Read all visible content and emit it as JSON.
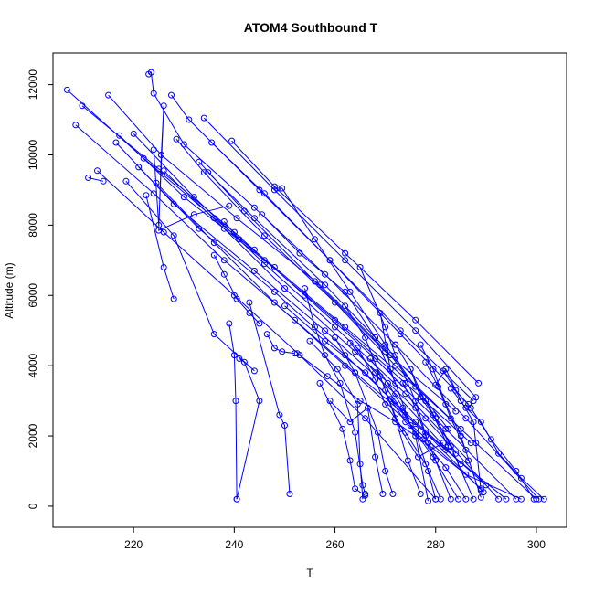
{
  "chart_data": {
    "type": "line",
    "title": "ATOM4 Southbound T",
    "xlabel": "T",
    "ylabel": "Altitude (m)",
    "xlim": [
      204,
      306
    ],
    "ylim": [
      -600,
      12900
    ],
    "xticks": [
      220,
      240,
      260,
      280,
      300
    ],
    "yticks": [
      0,
      2000,
      4000,
      6000,
      8000,
      10000,
      12000
    ],
    "grid": false,
    "legend": "none",
    "colors": {
      "series": "#0000ff",
      "axes": "#000000",
      "background": "#ffffff"
    },
    "marker": "open-circle",
    "series": [
      {
        "x": [
          206.8,
          222.0,
          236.0,
          248.0,
          262.0,
          276.0,
          288.0,
          300.0
        ],
        "y": [
          11850,
          9900,
          8200,
          6800,
          5100,
          3400,
          1800,
          200
        ]
      },
      {
        "x": [
          208.5,
          224.0,
          238.0,
          252.0,
          264.0,
          278.0,
          289.5
        ],
        "y": [
          10850,
          8900,
          7000,
          5300,
          3800,
          2100,
          400
        ]
      },
      {
        "x": [
          209.8,
          225.0,
          240.0,
          254.0,
          268.0,
          282.0,
          296.0
        ],
        "y": [
          11400,
          9600,
          7800,
          6000,
          4200,
          2200,
          200
        ]
      },
      {
        "x": [
          211.0,
          214.0
        ],
        "y": [
          9350,
          9250
        ]
      },
      {
        "x": [
          212.8,
          226.0,
          240.0,
          253.0,
          266.0,
          280.0
        ],
        "y": [
          9550,
          7800,
          6000,
          4300,
          2500,
          200
        ]
      },
      {
        "x": [
          215.0,
          225.5,
          240.5,
          257.0,
          271.0,
          282.5
        ],
        "y": [
          11700,
          10000,
          8200,
          6300,
          4300,
          2200
        ]
      },
      {
        "x": [
          216.5,
          228.0,
          244.0,
          258.0,
          272.0,
          285.0
        ],
        "y": [
          10350,
          8600,
          6700,
          5000,
          3200,
          1200
        ]
      },
      {
        "x": [
          217.2,
          230.0,
          246.0,
          260.0,
          274.0,
          287.0
        ],
        "y": [
          10550,
          8800,
          7000,
          5300,
          3500,
          1800
        ]
      },
      {
        "x": [
          218.5,
          228.0,
          236.0,
          244.0
        ],
        "y": [
          9250,
          7700,
          4900,
          3850
        ]
      },
      {
        "x": [
          220.0,
          232.0,
          246.0,
          260.0,
          274.0,
          286.5
        ],
        "y": [
          10600,
          8800,
          6900,
          5100,
          3200,
          1300
        ]
      },
      {
        "x": [
          221.0,
          233.0,
          248.0,
          262.0,
          276.0,
          290.0
        ],
        "y": [
          9650,
          7900,
          6100,
          4300,
          2400,
          600
        ]
      },
      {
        "x": [
          222.5,
          226.0,
          228.0
        ],
        "y": [
          8850,
          6800,
          5900
        ]
      },
      {
        "x": [
          223.0,
          223.5,
          224.0,
          230.0,
          244.0,
          258.0,
          272.0,
          286.0,
          300.5
        ],
        "y": [
          12300,
          12350,
          11750,
          10300,
          8500,
          6600,
          4600,
          2500,
          200
        ]
      },
      {
        "x": [
          224.0,
          225.0,
          226.0,
          225.5,
          225.0,
          232.0,
          239.0
        ],
        "y": [
          10150,
          8000,
          11400,
          10000,
          7850,
          8300,
          8550
        ]
      },
      {
        "x": [
          224.5,
          236.0,
          248.0,
          262.0,
          276.0,
          289.0
        ],
        "y": [
          9200,
          7500,
          5800,
          4000,
          2200,
          500
        ]
      },
      {
        "x": [
          226.0,
          238.0,
          250.0,
          264.0,
          278.0,
          292.5
        ],
        "y": [
          9550,
          7900,
          6200,
          4400,
          2500,
          200
        ]
      },
      {
        "x": [
          227.5,
          231.0,
          245.0,
          259.0,
          273.0,
          286.5
        ],
        "y": [
          11700,
          11000,
          9000,
          7000,
          4900,
          2900
        ]
      },
      {
        "x": [
          228.5,
          234.0,
          246.0,
          260.0,
          272.0,
          285.0
        ],
        "y": [
          10450,
          9500,
          7700,
          5800,
          4000,
          2200
        ]
      },
      {
        "x": [
          233.0,
          242.0,
          256.0,
          270.0,
          284.0
        ],
        "y": [
          9800,
          8400,
          6400,
          4400,
          2700
        ]
      },
      {
        "x": [
          234.0,
          248.0,
          262.0,
          276.0,
          288.0
        ],
        "y": [
          11050,
          9000,
          7000,
          5000,
          3100
        ]
      },
      {
        "x": [
          234.8,
          244.0,
          258.0,
          270.0
        ],
        "y": [
          9500,
          8200,
          6300,
          4500
        ]
      },
      {
        "x": [
          235.5,
          246.0,
          259.0,
          273.0,
          287.5
        ],
        "y": [
          10350,
          8900,
          7000,
          5000,
          3000
        ]
      },
      {
        "x": [
          236.0,
          238.0,
          240.5,
          243.0,
          245.0
        ],
        "y": [
          7150,
          6600,
          5900,
          5500,
          5200
        ]
      },
      {
        "x": [
          238.0,
          241.0,
          244.0
        ],
        "y": [
          8100,
          7600,
          7300
        ]
      },
      {
        "x": [
          239.0,
          240.0,
          240.3,
          240.5
        ],
        "y": [
          5200,
          4300,
          3000,
          200
        ]
      },
      {
        "x": [
          239.5,
          248.0,
          262.0,
          276.0,
          288.5
        ],
        "y": [
          10400,
          9100,
          7200,
          5300,
          3500
        ]
      },
      {
        "x": [
          241.0,
          242.0,
          245.0,
          240.5
        ],
        "y": [
          4200,
          4100,
          3000,
          200
        ]
      },
      {
        "x": [
          243.0,
          249.0,
          250.0,
          251.0
        ],
        "y": [
          5800,
          2600,
          2300,
          350
        ]
      },
      {
        "x": [
          245.5,
          253.0,
          262.0,
          268.0,
          272.0
        ],
        "y": [
          8300,
          7200,
          6100,
          4800,
          3500
        ]
      },
      {
        "x": [
          246.5,
          248.0,
          249.5,
          252.0
        ],
        "y": [
          4900,
          4500,
          4400,
          4350
        ]
      },
      {
        "x": [
          248.5,
          249.5,
          256.0,
          263.0,
          270.0,
          278.0,
          284.0
        ],
        "y": [
          9050,
          9050,
          7600,
          6100,
          4600,
          3000,
          1500
        ]
      },
      {
        "x": [
          250.0,
          258.0,
          266.0,
          274.0,
          282.0,
          294.0
        ],
        "y": [
          5700,
          4700,
          3800,
          2600,
          1600,
          200
        ]
      },
      {
        "x": [
          252.5,
          258.5,
          265.0,
          272.0,
          279.0,
          286.0,
          297.0
        ],
        "y": [
          4350,
          3700,
          3000,
          2400,
          1700,
          900,
          200
        ]
      },
      {
        "x": [
          254.0,
          256.0,
          258.0,
          261.0,
          264.0,
          265.5,
          266.0
        ],
        "y": [
          6200,
          5100,
          4300,
          3500,
          2100,
          600,
          350
        ]
      },
      {
        "x": [
          255.0,
          260.5,
          264.5,
          265.0,
          265.5
        ],
        "y": [
          4700,
          3900,
          2900,
          1200,
          200
        ]
      },
      {
        "x": [
          257.0,
          261.5,
          263.0,
          264.0,
          266.0
        ],
        "y": [
          3500,
          2200,
          1300,
          500,
          300
        ]
      },
      {
        "x": [
          259.0,
          263.0,
          266.5,
          268.0,
          269.5
        ],
        "y": [
          3000,
          2400,
          2800,
          1400,
          350
        ]
      },
      {
        "x": [
          260.0,
          264.0,
          268.5,
          270.0,
          271.5
        ],
        "y": [
          4800,
          3800,
          2100,
          1000,
          350
        ]
      },
      {
        "x": [
          262.0,
          266.0,
          269.0,
          272.0,
          274.5,
          277.0
        ],
        "y": [
          5700,
          4800,
          3700,
          2500,
          1300,
          350
        ]
      },
      {
        "x": [
          263.0,
          268.0,
          272.0,
          276.0,
          278.5,
          280.0
        ],
        "y": [
          4650,
          3800,
          3000,
          2100,
          1000,
          200
        ]
      },
      {
        "x": [
          264.5,
          268.0,
          270.0,
          274.0,
          278.0,
          281.0
        ],
        "y": [
          4500,
          3600,
          2900,
          2100,
          1200,
          200
        ]
      },
      {
        "x": [
          265.0,
          270.0,
          272.0,
          276.0,
          278.5
        ],
        "y": [
          6800,
          5100,
          4300,
          3000,
          1800
        ]
      },
      {
        "x": [
          267.0,
          270.5,
          273.5,
          276.0,
          278.5
        ],
        "y": [
          4200,
          3500,
          2800,
          2000,
          150
        ]
      },
      {
        "x": [
          269.0,
          271.0,
          275.0,
          279.5,
          284.5
        ],
        "y": [
          5500,
          3900,
          2300,
          1400,
          200
        ]
      },
      {
        "x": [
          270.0,
          273.0,
          276.5,
          281.5
        ],
        "y": [
          3300,
          2200,
          1400,
          1800
        ]
      },
      {
        "x": [
          271.0,
          274.0,
          277.5,
          282.0,
          286.0
        ],
        "y": [
          3050,
          2400,
          1900,
          1100,
          200
        ]
      },
      {
        "x": [
          272.0,
          275.0,
          277.0,
          279.5,
          282.5
        ],
        "y": [
          4600,
          3900,
          3100,
          2600,
          1700
        ]
      },
      {
        "x": [
          273.5,
          276.0,
          278.0,
          280.0,
          283.0
        ],
        "y": [
          3500,
          2800,
          2000,
          1300,
          200
        ]
      },
      {
        "x": [
          275.0,
          277.5,
          280.0,
          283.0,
          287.5
        ],
        "y": [
          3900,
          3100,
          2500,
          1700,
          200
        ]
      },
      {
        "x": [
          277.0,
          279.5,
          282.0,
          285.0,
          289.0
        ],
        "y": [
          4600,
          3900,
          2900,
          2000,
          250
        ]
      },
      {
        "x": [
          278.0,
          280.5,
          283.0,
          286.0
        ],
        "y": [
          4100,
          3400,
          2500,
          1600
        ]
      },
      {
        "x": [
          280.0,
          282.0,
          285.0,
          287.5,
          289.0
        ],
        "y": [
          3450,
          3900,
          3000,
          2400,
          450
        ]
      },
      {
        "x": [
          281.5,
          284.0,
          287.0,
          291.0,
          296.0,
          299.5
        ],
        "y": [
          3850,
          3300,
          2800,
          1900,
          1000,
          200
        ]
      },
      {
        "x": [
          283.0,
          286.0,
          289.0,
          292.5,
          297.0,
          301.5
        ],
        "y": [
          3350,
          2800,
          2400,
          1500,
          800,
          200
        ]
      }
    ]
  }
}
